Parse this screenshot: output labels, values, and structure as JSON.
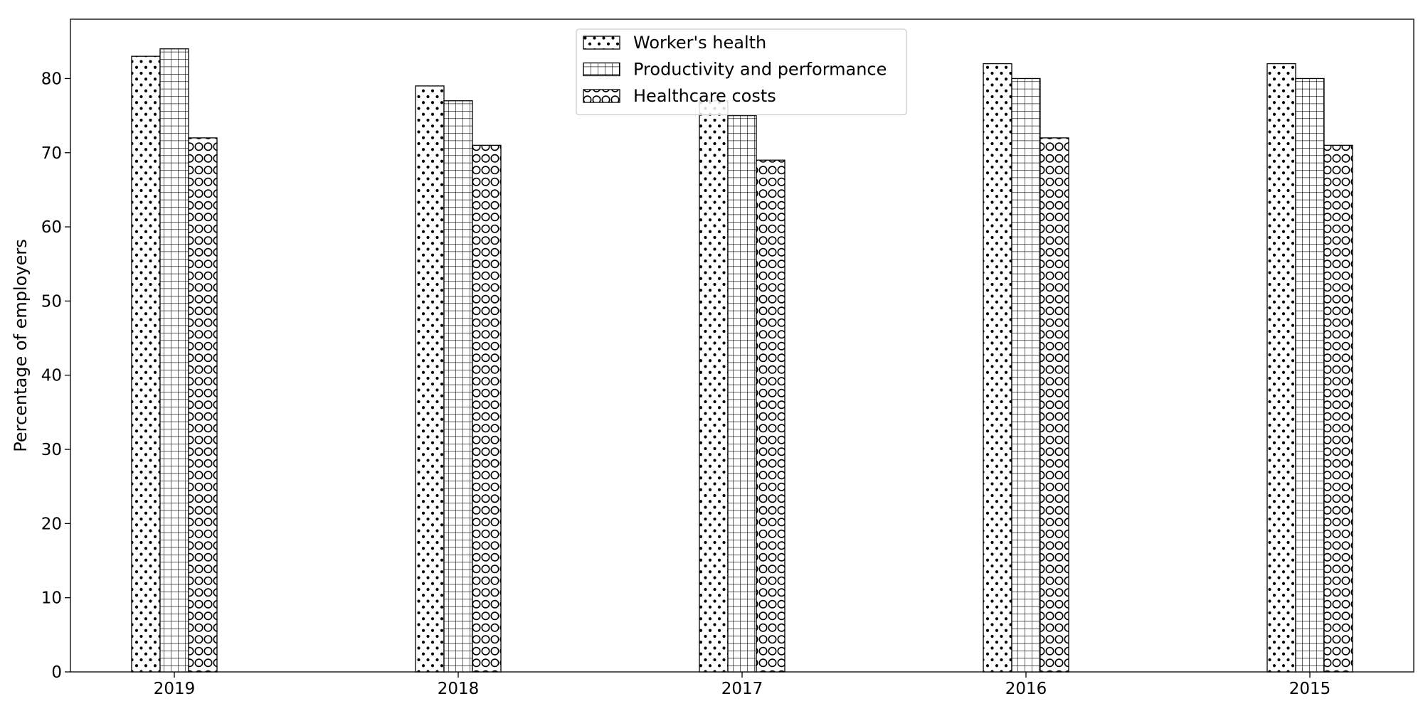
{
  "chart_data": {
    "type": "bar",
    "title": "",
    "xlabel": "",
    "ylabel": "Percentage of employers",
    "categories": [
      "2019",
      "2018",
      "2017",
      "2016",
      "2015"
    ],
    "series": [
      {
        "name": "Worker's health",
        "values": [
          83,
          79,
          77,
          82,
          82
        ],
        "pattern": "dots"
      },
      {
        "name": "Productivity and performance",
        "values": [
          84,
          77,
          75,
          80,
          80
        ],
        "pattern": "grid"
      },
      {
        "name": "Healthcare costs",
        "values": [
          72,
          71,
          69,
          72,
          71
        ],
        "pattern": "circles"
      }
    ],
    "ylim": [
      0,
      88
    ],
    "yticks": [
      0,
      10,
      20,
      30,
      40,
      50,
      60,
      70,
      80
    ],
    "grid": false,
    "legend_position": "top-center",
    "colors": {
      "fill": "#ffffff",
      "edge": "#000000",
      "hatch": "#000000"
    }
  }
}
